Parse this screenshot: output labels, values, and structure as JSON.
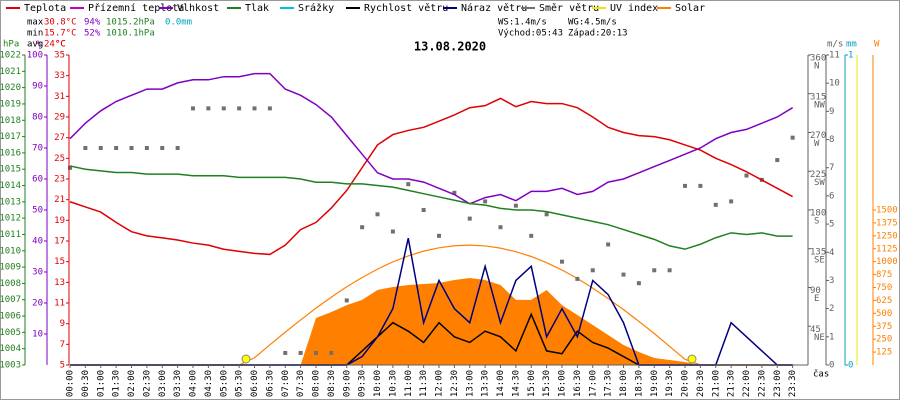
{
  "chart_data": {
    "type": "line",
    "title": "13.08.2020",
    "xlabel": "čas",
    "xlim": [
      0,
      24
    ],
    "xticks": [
      {
        "value": 0,
        "label": "00:00"
      },
      {
        "value": 0.5,
        "label": "00:30"
      },
      {
        "value": 1,
        "label": "01:00"
      },
      {
        "value": 1.5,
        "label": "01:30"
      },
      {
        "value": 2,
        "label": "02:00"
      },
      {
        "value": 2.5,
        "label": "02:30"
      },
      {
        "value": 3,
        "label": "03:00"
      },
      {
        "value": 3.5,
        "label": "03:30"
      },
      {
        "value": 4,
        "label": "04:00"
      },
      {
        "value": 4.5,
        "label": "04:30"
      },
      {
        "value": 5,
        "label": "05:00"
      },
      {
        "value": 5.5,
        "label": "05:30"
      },
      {
        "value": 6,
        "label": "06:00"
      },
      {
        "value": 6.5,
        "label": "06:30"
      },
      {
        "value": 7,
        "label": "07:00"
      },
      {
        "value": 7.5,
        "label": "07:30"
      },
      {
        "value": 8,
        "label": "08:00"
      },
      {
        "value": 8.5,
        "label": "08:30"
      },
      {
        "value": 9,
        "label": "09:00"
      },
      {
        "value": 9.5,
        "label": "09:30"
      },
      {
        "value": 10,
        "label": "10:00"
      },
      {
        "value": 10.5,
        "label": "10:30"
      },
      {
        "value": 11,
        "label": "11:00"
      },
      {
        "value": 11.5,
        "label": "11:30"
      },
      {
        "value": 12,
        "label": "12:00"
      },
      {
        "value": 12.5,
        "label": "12:30"
      },
      {
        "value": 13,
        "label": "13:00"
      },
      {
        "value": 13.5,
        "label": "13:30"
      },
      {
        "value": 14,
        "label": "14:00"
      },
      {
        "value": 14.5,
        "label": "14:30"
      },
      {
        "value": 15,
        "label": "15:00"
      },
      {
        "value": 15.5,
        "label": "15:30"
      },
      {
        "value": 16,
        "label": "16:00"
      },
      {
        "value": 16.5,
        "label": "16:30"
      },
      {
        "value": 17,
        "label": "17:00"
      },
      {
        "value": 17.5,
        "label": "17:30"
      },
      {
        "value": 18,
        "label": "18:00"
      },
      {
        "value": 18.5,
        "label": "18:30"
      },
      {
        "value": 19,
        "label": "19:00"
      },
      {
        "value": 19.5,
        "label": "19:30"
      },
      {
        "value": 20,
        "label": "20:00"
      },
      {
        "value": 20.5,
        "label": "20:30"
      },
      {
        "value": 21,
        "label": "21:00"
      },
      {
        "value": 21.5,
        "label": "21:30"
      },
      {
        "value": 22,
        "label": "22:00"
      },
      {
        "value": 22.5,
        "label": "22:30"
      },
      {
        "value": 23,
        "label": "23:00"
      },
      {
        "value": 23.5,
        "label": "23:30"
      }
    ],
    "x": [
      0,
      0.5,
      1,
      1.5,
      2,
      2.5,
      3,
      3.5,
      4,
      4.5,
      5,
      5.5,
      6,
      6.5,
      7,
      7.5,
      8,
      8.5,
      9,
      9.5,
      10,
      10.5,
      11,
      11.5,
      12,
      12.5,
      13,
      13.5,
      14,
      14.5,
      15,
      15.5,
      16,
      16.5,
      17,
      17.5,
      18,
      18.5,
      19,
      19.5,
      20,
      20.5,
      21,
      21.5,
      22,
      22.5,
      23,
      23.5
    ],
    "axes": [
      {
        "label": "hPa",
        "color": "#208020",
        "lim": [
          1003,
          1022
        ],
        "ticks": [
          1003,
          1004,
          1005,
          1006,
          1007,
          1008,
          1009,
          1010,
          1011,
          1012,
          1013,
          1014,
          1015,
          1016,
          1017,
          1018,
          1019,
          1020,
          1021,
          1022
        ]
      },
      {
        "label": "%",
        "color": "#8000c0",
        "lim": [
          0,
          100
        ],
        "ticks": [
          10,
          20,
          30,
          40,
          50,
          60,
          70,
          80,
          90,
          100
        ]
      },
      {
        "label": "°C",
        "color": "#e00000",
        "lim": [
          5,
          35
        ],
        "ticks": [
          5,
          7,
          9,
          11,
          13,
          15,
          17,
          19,
          21,
          23,
          25,
          27,
          29,
          31,
          33,
          35
        ]
      },
      {
        "color": "#606060",
        "lim": [
          0,
          360
        ],
        "ticks": [
          45,
          90,
          135,
          180,
          225,
          270,
          315,
          360
        ],
        "names": [
          "NE",
          "E",
          "SE",
          "S",
          "SW",
          "W",
          "NW",
          "N"
        ]
      },
      {
        "label": "m/s",
        "color": "#606060",
        "lim": [
          0,
          11
        ],
        "ticks": [
          0,
          1,
          2,
          3,
          4,
          5,
          6,
          7,
          8,
          9,
          10,
          11
        ]
      },
      {
        "label": "mm",
        "color": "#00a0c0",
        "lim": [
          0,
          1
        ],
        "ticks": [
          0,
          1
        ]
      },
      {
        "label": "W",
        "color": "#ff8000",
        "lim": [
          0,
          3000
        ],
        "ticks": [
          125,
          250,
          375,
          500,
          625,
          750,
          875,
          1000,
          1125,
          1250,
          1375,
          1500
        ]
      }
    ],
    "series": [
      {
        "name": "Teplota",
        "color": "#e00000",
        "kind": "line",
        "axis": 2,
        "values": [
          20.8,
          20.3,
          19.8,
          18.8,
          17.9,
          17.5,
          17.3,
          17.1,
          16.8,
          16.6,
          16.2,
          16.0,
          15.8,
          15.7,
          16.6,
          18.1,
          18.8,
          20.2,
          21.9,
          24.1,
          26.3,
          27.3,
          27.7,
          28.0,
          28.6,
          29.2,
          29.9,
          30.1,
          30.8,
          30.0,
          30.5,
          30.3,
          30.3,
          29.9,
          29.0,
          28.0,
          27.5,
          27.2,
          27.1,
          26.8,
          26.3,
          25.8,
          25.0,
          24.4,
          23.7,
          22.9,
          22.1,
          21.3
        ]
      },
      {
        "name": "Přízemní teplota",
        "color": "#c000c0"
      },
      {
        "name": "Vlhkost",
        "color": "#8000c0",
        "kind": "line",
        "axis": 1,
        "values": [
          73,
          78,
          82,
          85,
          87,
          89,
          89,
          91,
          92,
          92,
          93,
          93,
          94,
          94,
          89,
          87,
          84,
          80,
          74,
          68,
          62,
          60,
          60,
          59,
          57,
          55,
          52,
          54,
          55,
          53,
          56,
          56,
          57,
          55,
          56,
          59,
          60,
          62,
          64,
          66,
          68,
          70,
          73,
          75,
          76,
          78,
          80,
          83
        ]
      },
      {
        "name": "Tlak",
        "color": "#208020",
        "kind": "line",
        "axis": 0,
        "values": [
          1015.2,
          1015.0,
          1014.9,
          1014.8,
          1014.8,
          1014.7,
          1014.7,
          1014.7,
          1014.6,
          1014.6,
          1014.6,
          1014.5,
          1014.5,
          1014.5,
          1014.5,
          1014.4,
          1014.2,
          1014.2,
          1014.1,
          1014.1,
          1014.0,
          1013.9,
          1013.7,
          1013.5,
          1013.3,
          1013.1,
          1012.9,
          1012.8,
          1012.6,
          1012.5,
          1012.5,
          1012.4,
          1012.2,
          1012.0,
          1011.8,
          1011.6,
          1011.3,
          1011.0,
          1010.7,
          1010.3,
          1010.1,
          1010.4,
          1010.8,
          1011.1,
          1011.0,
          1011.1,
          1010.9,
          1010.9
        ]
      },
      {
        "name": "Srážky",
        "color": "#00c0e0"
      },
      {
        "name": "Rychlost větru",
        "color": "#000000",
        "kind": "line",
        "axis": 4,
        "values": [
          0,
          0,
          0,
          0,
          0,
          0,
          0,
          0,
          0,
          0,
          0,
          0,
          0,
          0,
          0,
          0,
          0,
          0,
          0,
          0.5,
          1,
          1.5,
          1.2,
          0.8,
          1.5,
          1.0,
          0.8,
          1.2,
          1.0,
          0.5,
          1.8,
          0.5,
          0.4,
          1.2,
          0.8,
          0.6,
          0.3,
          0,
          0,
          0,
          0,
          0,
          0,
          0,
          0,
          0,
          0,
          0
        ]
      },
      {
        "name": "Náraz větru",
        "color": "#000080",
        "kind": "line",
        "axis": 4,
        "values": [
          0,
          0,
          0,
          0,
          0,
          0,
          0,
          0,
          0,
          0,
          0,
          0,
          0,
          0,
          0,
          0,
          0,
          0,
          0,
          0.3,
          1,
          2,
          4.5,
          1.5,
          3,
          2,
          1.5,
          3.5,
          1.5,
          3,
          3.5,
          1,
          2,
          1,
          3,
          2.5,
          1.5,
          0,
          0,
          0,
          0,
          0,
          0,
          1.5,
          1,
          0.5,
          0,
          0
        ]
      },
      {
        "name": "Směr větru",
        "color": "#707070",
        "kind": "scatter",
        "axis": 3,
        "values": [
          229,
          252,
          252,
          252,
          252,
          252,
          252,
          252,
          298,
          298,
          298,
          298,
          298,
          298,
          14,
          14,
          14,
          14,
          75,
          160,
          175,
          155,
          210,
          180,
          150,
          200,
          170,
          190,
          160,
          185,
          150,
          175,
          120,
          100,
          110,
          140,
          105,
          95,
          110,
          110,
          208,
          208,
          186,
          190,
          220,
          215,
          238,
          264
        ]
      },
      {
        "name": "UV index",
        "color": "#e8e800"
      },
      {
        "name": "Solar",
        "color": "#ff8000",
        "kind": "area",
        "axis": 6,
        "values": [
          0,
          0,
          0,
          0,
          0,
          0,
          0,
          0,
          0,
          0,
          0,
          0,
          0,
          0,
          0,
          0,
          455,
          513,
          580,
          630,
          726,
          755,
          774,
          784,
          794,
          823,
          842,
          823,
          774,
          630,
          630,
          726,
          580,
          484,
          387,
          290,
          194,
          126,
          68,
          48,
          29,
          0,
          0,
          0,
          0,
          0,
          0,
          0
        ],
        "theoretical": [
          0,
          0,
          0,
          0,
          0,
          0,
          0,
          0,
          0,
          0,
          0,
          0,
          70,
          195,
          318,
          436,
          550,
          657,
          757,
          847,
          928,
          998,
          1056,
          1102,
          1134,
          1154,
          1160,
          1152,
          1131,
          1097,
          1050,
          990,
          919,
          837,
          744,
          643,
          536,
          422,
          305,
          180,
          55,
          0,
          0,
          0,
          0,
          0,
          0,
          0
        ]
      }
    ],
    "stats": [
      [
        "max",
        "30.8°C",
        "94%",
        "1015.2hPa",
        "0.0mm"
      ],
      [
        "min",
        "15.7°C",
        "52%",
        "1010.1hPa"
      ],
      [
        "avg",
        "24°C"
      ]
    ],
    "wind_info": [
      [
        "WS:1.4m/s",
        "WG:4.5m/s"
      ],
      [
        "Východ:05:43",
        "Západ:20:13"
      ]
    ]
  }
}
